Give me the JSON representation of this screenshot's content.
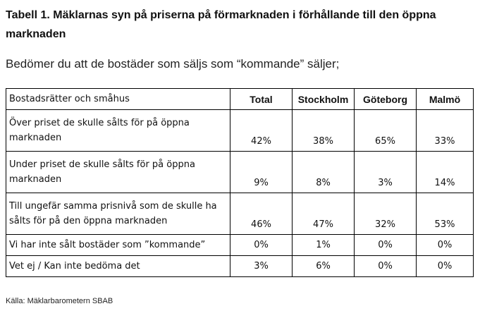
{
  "title": "Tabell 1. Mäklarnas syn på priserna på förmarknaden i förhållande till den öppna marknaden",
  "question": "Bedömer du att de bostäder som säljs som “kommande” säljer;",
  "table": {
    "headers": [
      "Bostadsrätter och småhus",
      "Total",
      "Stockholm",
      "Göteborg",
      "Malmö"
    ],
    "rows": [
      {
        "label": "Över priset de skulle sålts för på öppna marknaden",
        "values": [
          "42%",
          "38%",
          "65%",
          "33%"
        ]
      },
      {
        "label": "Under priset de skulle sålts för på öppna marknaden",
        "values": [
          "9%",
          "8%",
          "3%",
          "14%"
        ]
      },
      {
        "label": "Till ungefär samma prisnivå som de skulle ha sålts för på den öppna marknaden",
        "values": [
          "46%",
          "47%",
          "32%",
          "53%"
        ]
      },
      {
        "label": "Vi har inte sålt bostäder som ”kommande”",
        "values": [
          "0%",
          "1%",
          "0%",
          "0%"
        ]
      },
      {
        "label": "Vet ej / Kan inte bedöma det",
        "values": [
          "3%",
          "6%",
          "0%",
          "0%"
        ]
      }
    ]
  },
  "source": "Källa: Mäklarbarometern SBAB"
}
